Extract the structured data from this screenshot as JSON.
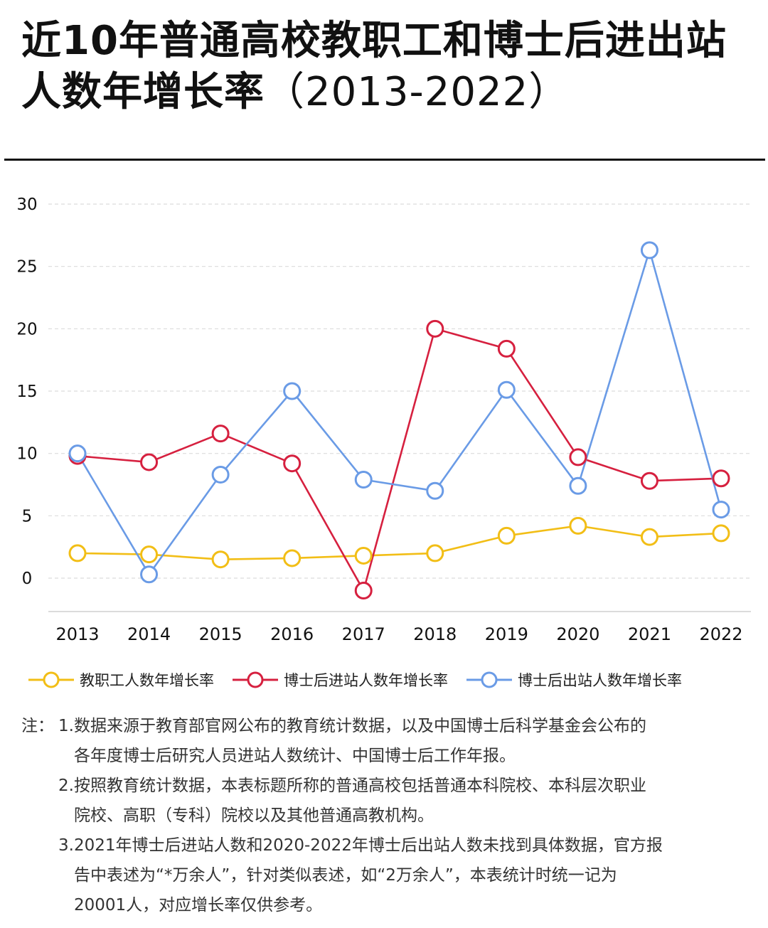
{
  "title": {
    "line1": "近10年普通高校教职工和博士后进出站",
    "line2_main": "人数年增长率",
    "line2_suffix": "（2013-2022）"
  },
  "chart_data": {
    "type": "line",
    "title": "近10年普通高校教职工和博士后进出站人数年增长率（2013-2022）",
    "categories": [
      "2013",
      "2014",
      "2015",
      "2016",
      "2017",
      "2018",
      "2019",
      "2020",
      "2021",
      "2022"
    ],
    "ylim": [
      -2.5,
      30
    ],
    "yticks": [
      0,
      5,
      10,
      15,
      20,
      25,
      30
    ],
    "grid": "horizontal-dashed",
    "legend": "bottom",
    "series": [
      {
        "name": "教职工人数年增长率",
        "color": "#F2BE16",
        "values": [
          2.0,
          1.9,
          1.5,
          1.6,
          1.8,
          2.0,
          3.4,
          4.2,
          3.3,
          3.6
        ]
      },
      {
        "name": "博士后进站人数年增长率",
        "color": "#D6203F",
        "values": [
          9.8,
          9.3,
          11.6,
          9.2,
          -1.0,
          20.0,
          18.4,
          9.7,
          7.8,
          8.0
        ]
      },
      {
        "name": "博士后出站人数年增长率",
        "color": "#6A9BE6",
        "values": [
          10.0,
          0.3,
          8.3,
          15.0,
          7.9,
          7.0,
          15.1,
          7.4,
          26.3,
          5.5
        ]
      }
    ]
  },
  "notes": {
    "prefix": "注：",
    "n1_line1": "1.数据来源于教育部官网公布的教育统计数据，以及中国博士后科学基金会公布的",
    "n1_line2": "各年度博士后研究人员进站人数统计、中国博士后工作年报。",
    "n2_line1": "2.按照教育统计数据，本表标题所称的普通高校包括普通本科院校、本科层次职业",
    "n2_line2": "院校、高职（专科）院校以及其他普通高教机构。",
    "n3_line1": "3.2021年博士后进站人数和2020-2022年博士后出站人数未找到具体数据，官方报",
    "n3_line2": "告中表述为“*万余人”，针对类似表述，如“2万余人”，本表统计时统一记为",
    "n3_line3": "20001人，对应增长率仅供参考。"
  }
}
